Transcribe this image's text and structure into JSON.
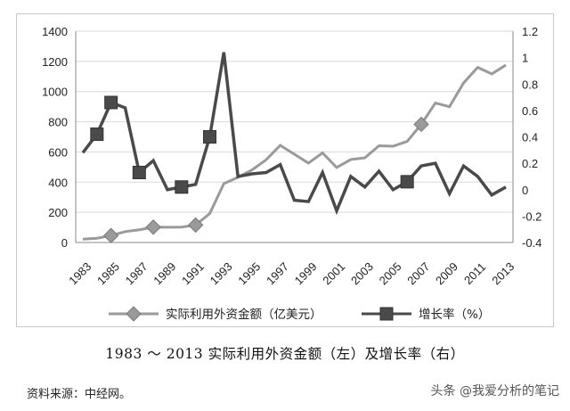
{
  "chart_data": {
    "type": "line",
    "x": [
      1983,
      1984,
      1985,
      1986,
      1987,
      1988,
      1989,
      1990,
      1991,
      1992,
      1993,
      1994,
      1995,
      1996,
      1997,
      1998,
      1999,
      2000,
      2001,
      2002,
      2003,
      2004,
      2005,
      2006,
      2007,
      2008,
      2009,
      2010,
      2011,
      2012,
      2013
    ],
    "x_tick_labels": [
      "1983",
      "1985",
      "1987",
      "1989",
      "1991",
      "1993",
      "1995",
      "1997",
      "1999",
      "2001",
      "2003",
      "2005",
      "2007",
      "2009",
      "2011",
      "2013"
    ],
    "y_left_ticks": [
      "0",
      "200",
      "400",
      "600",
      "800",
      "1000",
      "1200",
      "1400"
    ],
    "y_right_ticks": [
      "-0.4",
      "-0.2",
      "0",
      "0.2",
      "0.4",
      "0.6",
      "0.8",
      "1",
      "1.2"
    ],
    "ylim_left": [
      0,
      1400
    ],
    "ylim_right": [
      -0.4,
      1.2
    ],
    "series": [
      {
        "name": "实际利用外资金额（亿美元）",
        "axis": "left",
        "color": "#9a9a9a",
        "marker": "diamond",
        "marker_years": [
          1985,
          1988,
          1991,
          2007
        ],
        "values": [
          22,
          28,
          46,
          72,
          84,
          102,
          101,
          102,
          116,
          192,
          390,
          432,
          481,
          548,
          644,
          585,
          526,
          594,
          497,
          550,
          561,
          641,
          638,
          670,
          783,
          924,
          900,
          1057,
          1160,
          1117,
          1176
        ]
      },
      {
        "name": "增长率（%）",
        "axis": "right",
        "color": "#4a4a4a",
        "marker": "square",
        "marker_years": [
          1984,
          1985,
          1987,
          1990,
          1992,
          2006
        ],
        "values": [
          0.28,
          0.42,
          0.66,
          0.62,
          0.13,
          0.22,
          0.0,
          0.02,
          0.04,
          0.4,
          1.04,
          0.1,
          0.12,
          0.13,
          0.19,
          -0.08,
          -0.09,
          0.13,
          -0.16,
          0.1,
          0.02,
          0.14,
          0.0,
          0.06,
          0.18,
          0.2,
          -0.03,
          0.18,
          0.1,
          -0.04,
          0.02
        ]
      }
    ]
  },
  "caption": "1983 ～ 2013 实际利用外资金额（左）及增长率（右）",
  "source": "资料来源：中经网。",
  "watermark": "头条 @我爱分析的笔记"
}
